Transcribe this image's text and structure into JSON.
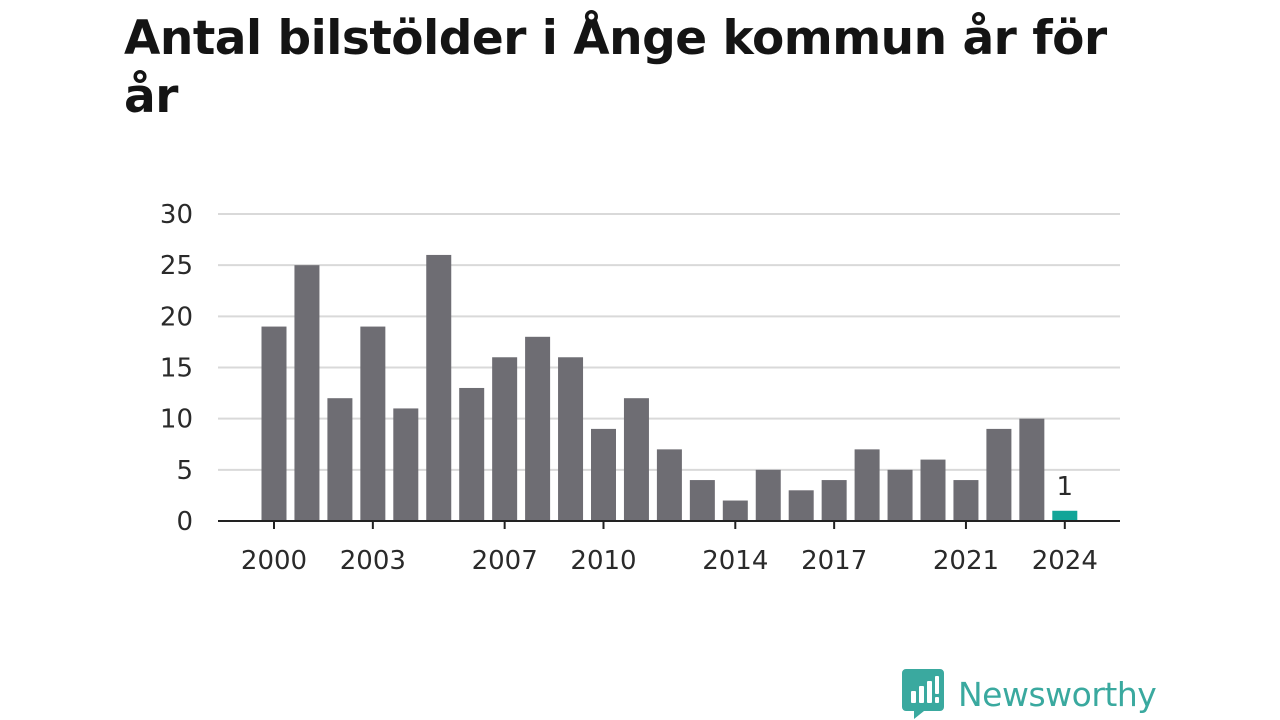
{
  "chart_data": {
    "type": "bar",
    "title": "Antal bilstölder i Ånge kommun år för år",
    "xlabel": "",
    "ylabel": "",
    "ylim": [
      0,
      30
    ],
    "yticks": [
      "0",
      "5",
      "10",
      "15",
      "20",
      "25",
      "30"
    ],
    "categories": [
      "2000",
      "2001",
      "2002",
      "2003",
      "2004",
      "2005",
      "2006",
      "2007",
      "2008",
      "2009",
      "2010",
      "2011",
      "2012",
      "2013",
      "2014",
      "2015",
      "2016",
      "2017",
      "2018",
      "2019",
      "2020",
      "2021",
      "2022",
      "2023",
      "2024"
    ],
    "values": [
      19,
      25,
      12,
      19,
      11,
      26,
      13,
      16,
      18,
      16,
      9,
      12,
      7,
      4,
      2,
      5,
      3,
      4,
      7,
      5,
      6,
      4,
      9,
      10,
      1
    ],
    "xtick_labels": [
      "2000",
      "2003",
      "2007",
      "2010",
      "2014",
      "2017",
      "2021",
      "2024"
    ],
    "highlight": {
      "category": "2024",
      "label": "1"
    },
    "grid": true,
    "colors": {
      "bar": "#6e6d73",
      "highlight": "#12a598",
      "grid": "#d9d9d9",
      "axis": "#222222"
    }
  },
  "brand": {
    "name": "Newsworthy",
    "color": "#3aa99f"
  }
}
